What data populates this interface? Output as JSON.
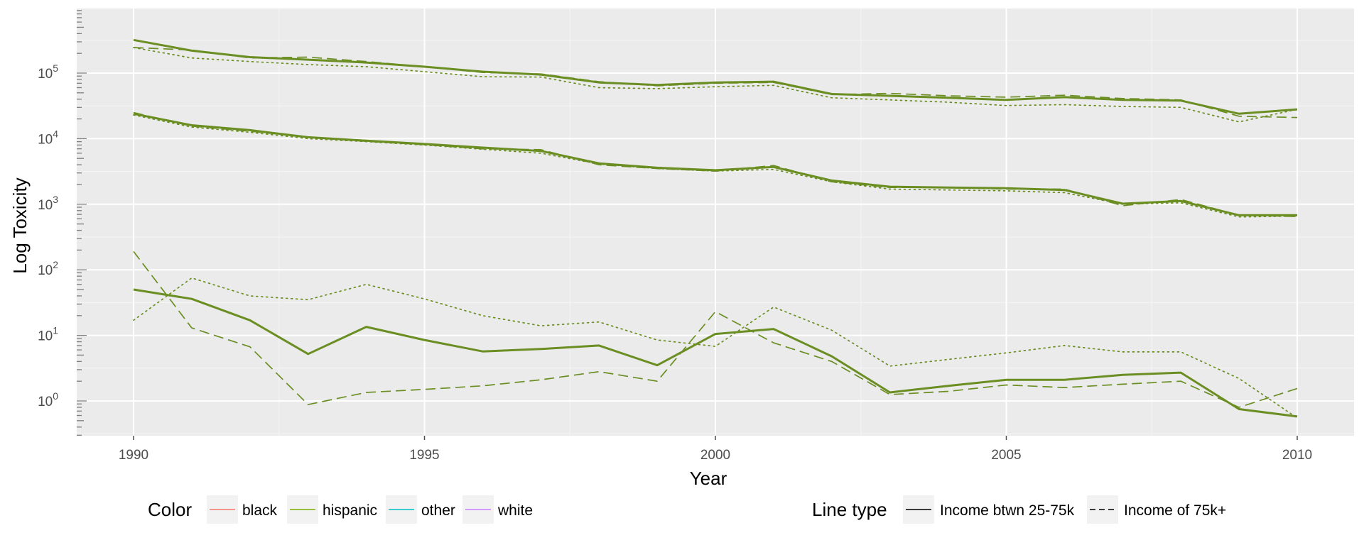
{
  "chart_data": {
    "type": "line",
    "xlabel": "Year",
    "ylabel": "Log Toxicity",
    "xlim": [
      1989,
      2011
    ],
    "ylim": [
      0.3,
      1000000
    ],
    "y_scale": "log10",
    "grid": true,
    "x_ticks": [
      "1990",
      "1995",
      "2000",
      "2005",
      "2010"
    ],
    "y_ticks": [
      {
        "base": "10",
        "exp": "0"
      },
      {
        "base": "10",
        "exp": "1"
      },
      {
        "base": "10",
        "exp": "2"
      },
      {
        "base": "10",
        "exp": "3"
      },
      {
        "base": "10",
        "exp": "4"
      },
      {
        "base": "10",
        "exp": "5"
      }
    ],
    "x": [
      1990,
      1991,
      1992,
      1993,
      1994,
      1995,
      1996,
      1997,
      1998,
      1999,
      2000,
      2001,
      2002,
      2003,
      2004,
      2005,
      2006,
      2007,
      2008,
      2009,
      2010
    ],
    "series": [
      {
        "group": "top",
        "linetype": "solid",
        "color": "#6b8e23",
        "values": [
          320000,
          220000,
          175000,
          160000,
          145000,
          125000,
          105000,
          95000,
          72000,
          66000,
          72000,
          74000,
          48000,
          45000,
          42000,
          39000,
          43000,
          39000,
          38000,
          24000,
          28000
        ]
      },
      {
        "group": "top",
        "linetype": "dashed",
        "color": "#6b8e23",
        "values": [
          245000,
          225000,
          170000,
          175000,
          150000,
          125000,
          102000,
          97000,
          74000,
          64000,
          70000,
          72000,
          47000,
          49000,
          45000,
          43000,
          46000,
          41000,
          39000,
          22000,
          21000
        ]
      },
      {
        "group": "top",
        "linetype": "dotted",
        "color": "#6b8e23",
        "values": [
          245000,
          170000,
          150000,
          135000,
          125000,
          105000,
          88000,
          87000,
          60000,
          58000,
          62000,
          65000,
          42000,
          39000,
          36000,
          32000,
          33000,
          31000,
          30000,
          18000,
          28000
        ]
      },
      {
        "group": "middle",
        "linetype": "solid",
        "color": "#6b8e23",
        "values": [
          24000,
          16000,
          13500,
          10500,
          9300,
          8300,
          7300,
          6500,
          4200,
          3600,
          3300,
          3700,
          2300,
          1850,
          1800,
          1750,
          1650,
          1020,
          1120,
          680,
          680
        ]
      },
      {
        "group": "middle",
        "linetype": "dashed",
        "color": "#6b8e23",
        "values": [
          25000,
          15500,
          13000,
          10500,
          9100,
          8100,
          7000,
          6800,
          4000,
          3500,
          3200,
          3900,
          2200,
          1800,
          1800,
          1700,
          1700,
          950,
          1180,
          680,
          650
        ]
      },
      {
        "group": "middle",
        "linetype": "dotted",
        "color": "#6b8e23",
        "values": [
          23000,
          15000,
          12500,
          10000,
          9000,
          8000,
          6900,
          6000,
          4100,
          3500,
          3200,
          3400,
          2200,
          1700,
          1650,
          1600,
          1500,
          1000,
          1050,
          640,
          660
        ]
      },
      {
        "group": "bottom",
        "linetype": "solid",
        "color": "#6b8e23",
        "values": [
          50,
          36,
          17,
          5.2,
          13.5,
          8.5,
          5.7,
          6.2,
          7.0,
          3.5,
          10.5,
          12.5,
          4.8,
          1.35,
          1.7,
          2.1,
          2.1,
          2.5,
          2.7,
          0.75,
          0.58
        ]
      },
      {
        "group": "bottom",
        "linetype": "dashed",
        "color": "#6b8e23",
        "values": [
          190,
          13,
          6.7,
          0.88,
          1.35,
          1.5,
          1.7,
          2.1,
          2.8,
          2.0,
          23,
          7.7,
          4.0,
          1.25,
          1.4,
          1.75,
          1.6,
          1.8,
          2.0,
          0.8,
          1.55
        ]
      },
      {
        "group": "bottom",
        "linetype": "dotted",
        "color": "#6b8e23",
        "values": [
          17,
          75,
          40,
          35,
          60,
          36,
          20,
          14,
          16,
          8.5,
          6.8,
          27,
          12,
          3.4,
          4.3,
          5.4,
          7.0,
          5.6,
          5.6,
          2.2,
          0.55
        ]
      }
    ],
    "legends": [
      {
        "title": "Color",
        "entries": [
          {
            "label": "black",
            "color": "#f8766d"
          },
          {
            "label": "hispanic",
            "color": "#7cae00"
          },
          {
            "label": "other",
            "color": "#00bfc4"
          },
          {
            "label": "white",
            "color": "#c77cff"
          }
        ]
      },
      {
        "title": "Line type",
        "entries": [
          {
            "label": "Income btwn 25-75k",
            "linetype": "solid"
          },
          {
            "label": "Income of 75k+",
            "linetype": "dashed"
          }
        ]
      }
    ],
    "legend_position": "bottom",
    "panel_color": "#ebebeb"
  }
}
